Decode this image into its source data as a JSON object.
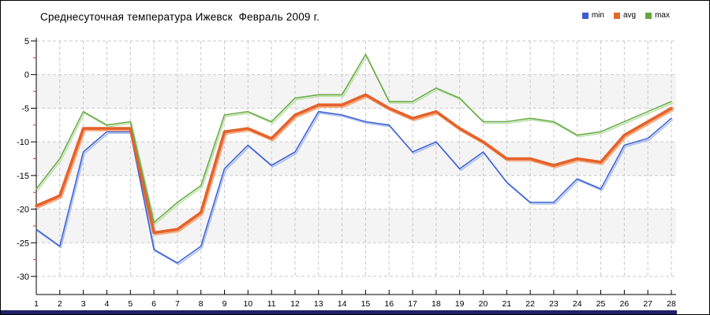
{
  "header": {
    "title": "Среднесуточная температура Ижевск  Февраль 2009 г."
  },
  "legend": [
    {
      "label": "min",
      "color": "#3a5cd2"
    },
    {
      "label": "avg",
      "color": "#e5662b"
    },
    {
      "label": "max",
      "color": "#63a93f"
    }
  ],
  "colors": {
    "band_fill": "#f4f4f4",
    "grid_line": "#c9c9c9",
    "axis": "#000000",
    "minor_tick": "#d93b00",
    "bottom_bar": "#20206a",
    "text": "#000000"
  },
  "chart_data": {
    "type": "line",
    "title": "Среднесуточная температура Ижевск  Февраль 2009 г.",
    "xlabel": "",
    "ylabel": "",
    "x": [
      1,
      2,
      3,
      4,
      5,
      6,
      7,
      8,
      9,
      10,
      11,
      12,
      13,
      14,
      15,
      16,
      17,
      18,
      19,
      20,
      21,
      22,
      23,
      24,
      25,
      26,
      27,
      28
    ],
    "series": [
      {
        "name": "min",
        "color": "#3f62d4",
        "shadow": "#aabdee",
        "width": 1.6,
        "values": [
          -23,
          -25.5,
          -11.5,
          -8.5,
          -8.5,
          -26,
          -28,
          -25.5,
          -14,
          -10.5,
          -13.5,
          -11.5,
          -5.5,
          -6,
          -7,
          -7.5,
          -11.5,
          -10,
          -14,
          -11.5,
          -16,
          -19,
          -19,
          -15.5,
          -17,
          -10.5,
          -9.5,
          -6.5
        ]
      },
      {
        "name": "avg",
        "color": "#e5622b",
        "shadow": "#f4ae86",
        "width": 3.6,
        "values": [
          -19.5,
          -18,
          -8,
          -8,
          -8,
          -23.5,
          -23,
          -20.5,
          -8.5,
          -8,
          -9.5,
          -6,
          -4.5,
          -4.5,
          -3,
          -5,
          -6.5,
          -5.5,
          -8,
          -10,
          -12.5,
          -12.5,
          -13.5,
          -12.5,
          -13,
          -9,
          -7,
          -5
        ]
      },
      {
        "name": "max",
        "color": "#6bad4a",
        "shadow": "#bedfa8",
        "width": 1.6,
        "values": [
          -17,
          -12.5,
          -5.5,
          -7.5,
          -7,
          -22,
          -19,
          -16.5,
          -6,
          -5.5,
          -7,
          -3.5,
          -3,
          -3,
          3,
          -4,
          -4,
          -2,
          -3.5,
          -7,
          -7,
          -6.5,
          -7,
          -9,
          -8.5,
          -7,
          -5.5,
          -4
        ]
      }
    ],
    "ylim": [
      -30,
      5
    ],
    "y_ticks": [
      5,
      0,
      -5,
      -10,
      -15,
      -20,
      -25,
      -30
    ],
    "y_minor_ticks": [
      2.5,
      -2.5,
      -7.5,
      -12.5,
      -17.5,
      -22.5,
      -27.5
    ],
    "grid": "dashed",
    "legend_position": "top-right"
  }
}
